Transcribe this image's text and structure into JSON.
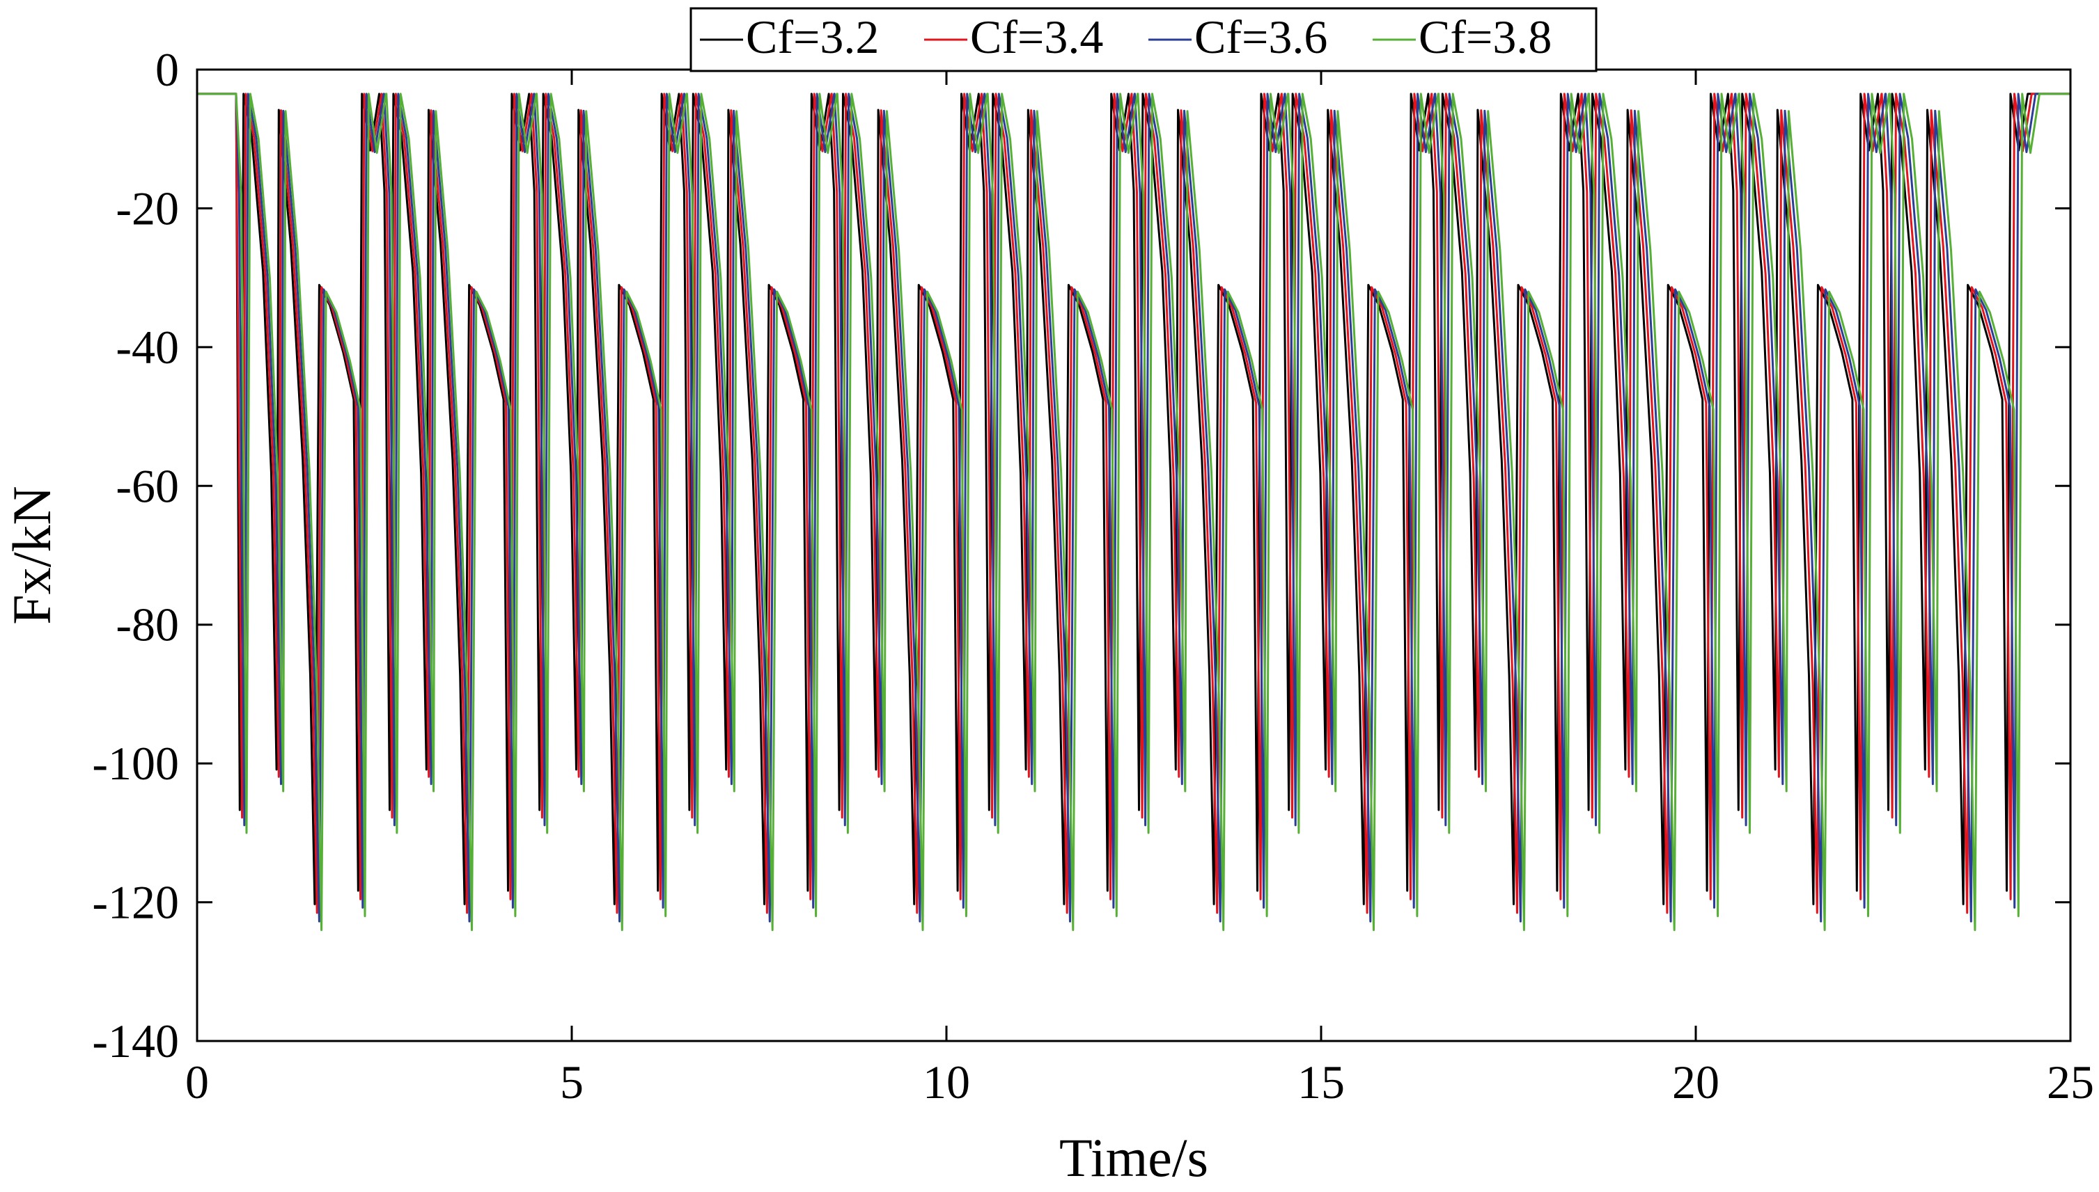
{
  "chart_data": {
    "type": "line",
    "title": "",
    "xlabel": "Time/s",
    "ylabel": "Fx/kN",
    "xlim": [
      0,
      25
    ],
    "ylim": [
      -140,
      0
    ],
    "xticks": [
      0,
      5,
      10,
      15,
      20,
      25
    ],
    "yticks": [
      0,
      -20,
      -40,
      -60,
      -80,
      -100,
      -120,
      -140
    ],
    "xtick_labels": [
      "0",
      "5",
      "10",
      "15",
      "20",
      "25"
    ],
    "ytick_labels": [
      "0",
      "-20",
      "-40",
      "-60",
      "-80",
      "-100",
      "-120",
      "-140"
    ],
    "grid": false,
    "legend": {
      "placement": "top-center-outside",
      "orientation": "horizontal"
    },
    "pattern": {
      "initial_flat": {
        "t_end": 0.52,
        "value": -3.5
      },
      "cycle_period": 2.0,
      "cycle_count": 12,
      "cycle_template": [
        {
          "t": 0.0,
          "v": -3.5
        },
        {
          "t": 0.07,
          "v": -18
        },
        {
          "t": 0.14,
          "v": -110
        },
        {
          "t": 0.19,
          "v": -3.5
        },
        {
          "t": 0.3,
          "v": -10
        },
        {
          "t": 0.45,
          "v": -30
        },
        {
          "t": 0.56,
          "v": -60
        },
        {
          "t": 0.63,
          "v": -104
        },
        {
          "t": 0.66,
          "v": -6
        },
        {
          "t": 0.82,
          "v": -26
        },
        {
          "t": 0.98,
          "v": -58
        },
        {
          "t": 1.08,
          "v": -90
        },
        {
          "t": 1.14,
          "v": -124
        },
        {
          "t": 1.2,
          "v": -32
        },
        {
          "t": 1.34,
          "v": -35
        },
        {
          "t": 1.52,
          "v": -42
        },
        {
          "t": 1.66,
          "v": -49
        },
        {
          "t": 1.72,
          "v": -122
        },
        {
          "t": 1.77,
          "v": -3.5
        },
        {
          "t": 1.88,
          "v": -12
        },
        {
          "t": 2.0,
          "v": -3.5
        }
      ]
    },
    "series": [
      {
        "name": "Cf=3.2",
        "color": "#000000",
        "time_shift": -0.09,
        "depth_scale": 0.97
      },
      {
        "name": "Cf=3.4",
        "color": "#e3141c",
        "time_shift": -0.06,
        "depth_scale": 0.98
      },
      {
        "name": "Cf=3.6",
        "color": "#2a3e98",
        "time_shift": -0.03,
        "depth_scale": 0.99
      },
      {
        "name": "Cf=3.8",
        "color": "#55b035",
        "time_shift": 0.0,
        "depth_scale": 1.0
      }
    ]
  }
}
